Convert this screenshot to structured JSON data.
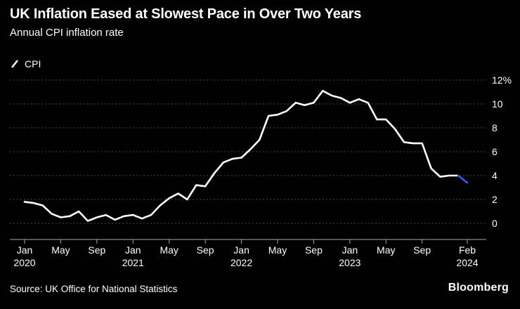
{
  "header": {
    "title": "UK Inflation Eased at Slowest Pace in Over Two Years",
    "subtitle": "Annual CPI inflation rate"
  },
  "legend": {
    "series_label": "CPI"
  },
  "footer": {
    "source": "Source: UK Office for National Statistics",
    "brand": "Bloomberg"
  },
  "colors": {
    "background": "#000000",
    "text": "#ffffff",
    "line": "#ffffff",
    "highlight": "#2d5ef5",
    "grid": "#4d4d4d",
    "axis": "#a6a6a6"
  },
  "chart_data": {
    "type": "line",
    "title": "UK Inflation Eased at Slowest Pace in Over Two Years",
    "subtitle": "Annual CPI inflation rate",
    "xlabel": "",
    "ylabel": "Annual CPI inflation rate (%)",
    "ylim": [
      -1.4,
      12
    ],
    "grid": "dotted-horizontal",
    "legend_position": "top-left",
    "highlight_last_points": 1,
    "x": [
      "2020-01",
      "2020-02",
      "2020-03",
      "2020-04",
      "2020-05",
      "2020-06",
      "2020-07",
      "2020-08",
      "2020-09",
      "2020-10",
      "2020-11",
      "2020-12",
      "2021-01",
      "2021-02",
      "2021-03",
      "2021-04",
      "2021-05",
      "2021-06",
      "2021-07",
      "2021-08",
      "2021-09",
      "2021-10",
      "2021-11",
      "2021-12",
      "2022-01",
      "2022-02",
      "2022-03",
      "2022-04",
      "2022-05",
      "2022-06",
      "2022-07",
      "2022-08",
      "2022-09",
      "2022-10",
      "2022-11",
      "2022-12",
      "2023-01",
      "2023-02",
      "2023-03",
      "2023-04",
      "2023-05",
      "2023-06",
      "2023-07",
      "2023-08",
      "2023-09",
      "2023-10",
      "2023-11",
      "2023-12",
      "2024-01",
      "2024-02"
    ],
    "series": [
      {
        "name": "CPI",
        "values": [
          1.8,
          1.7,
          1.5,
          0.8,
          0.5,
          0.6,
          1.0,
          0.2,
          0.5,
          0.7,
          0.3,
          0.6,
          0.7,
          0.4,
          0.7,
          1.5,
          2.1,
          2.5,
          2.0,
          3.2,
          3.1,
          4.2,
          5.1,
          5.4,
          5.5,
          6.2,
          7.0,
          9.0,
          9.1,
          9.4,
          10.1,
          9.9,
          10.1,
          11.1,
          10.7,
          10.5,
          10.1,
          10.4,
          10.1,
          8.7,
          8.7,
          7.9,
          6.8,
          6.7,
          6.7,
          4.6,
          3.9,
          4.0,
          4.0,
          3.4
        ]
      }
    ],
    "x_ticks": [
      {
        "index": 0,
        "month": "Jan",
        "year": "2020"
      },
      {
        "index": 4,
        "month": "May"
      },
      {
        "index": 8,
        "month": "Sep"
      },
      {
        "index": 12,
        "month": "Jan",
        "year": "2021"
      },
      {
        "index": 16,
        "month": "May"
      },
      {
        "index": 20,
        "month": "Sep"
      },
      {
        "index": 24,
        "month": "Jan",
        "year": "2022"
      },
      {
        "index": 28,
        "month": "May"
      },
      {
        "index": 32,
        "month": "Sep"
      },
      {
        "index": 36,
        "month": "Jan",
        "year": "2023"
      },
      {
        "index": 40,
        "month": "May"
      },
      {
        "index": 44,
        "month": "Sep"
      },
      {
        "index": 49,
        "month": "Feb",
        "year": "2024"
      }
    ],
    "y_ticks": [
      {
        "value": 0,
        "label": "0"
      },
      {
        "value": 2,
        "label": "2"
      },
      {
        "value": 4,
        "label": "4"
      },
      {
        "value": 6,
        "label": "6"
      },
      {
        "value": 8,
        "label": "8"
      },
      {
        "value": 10,
        "label": "10"
      },
      {
        "value": 12,
        "label": "12%"
      }
    ]
  }
}
